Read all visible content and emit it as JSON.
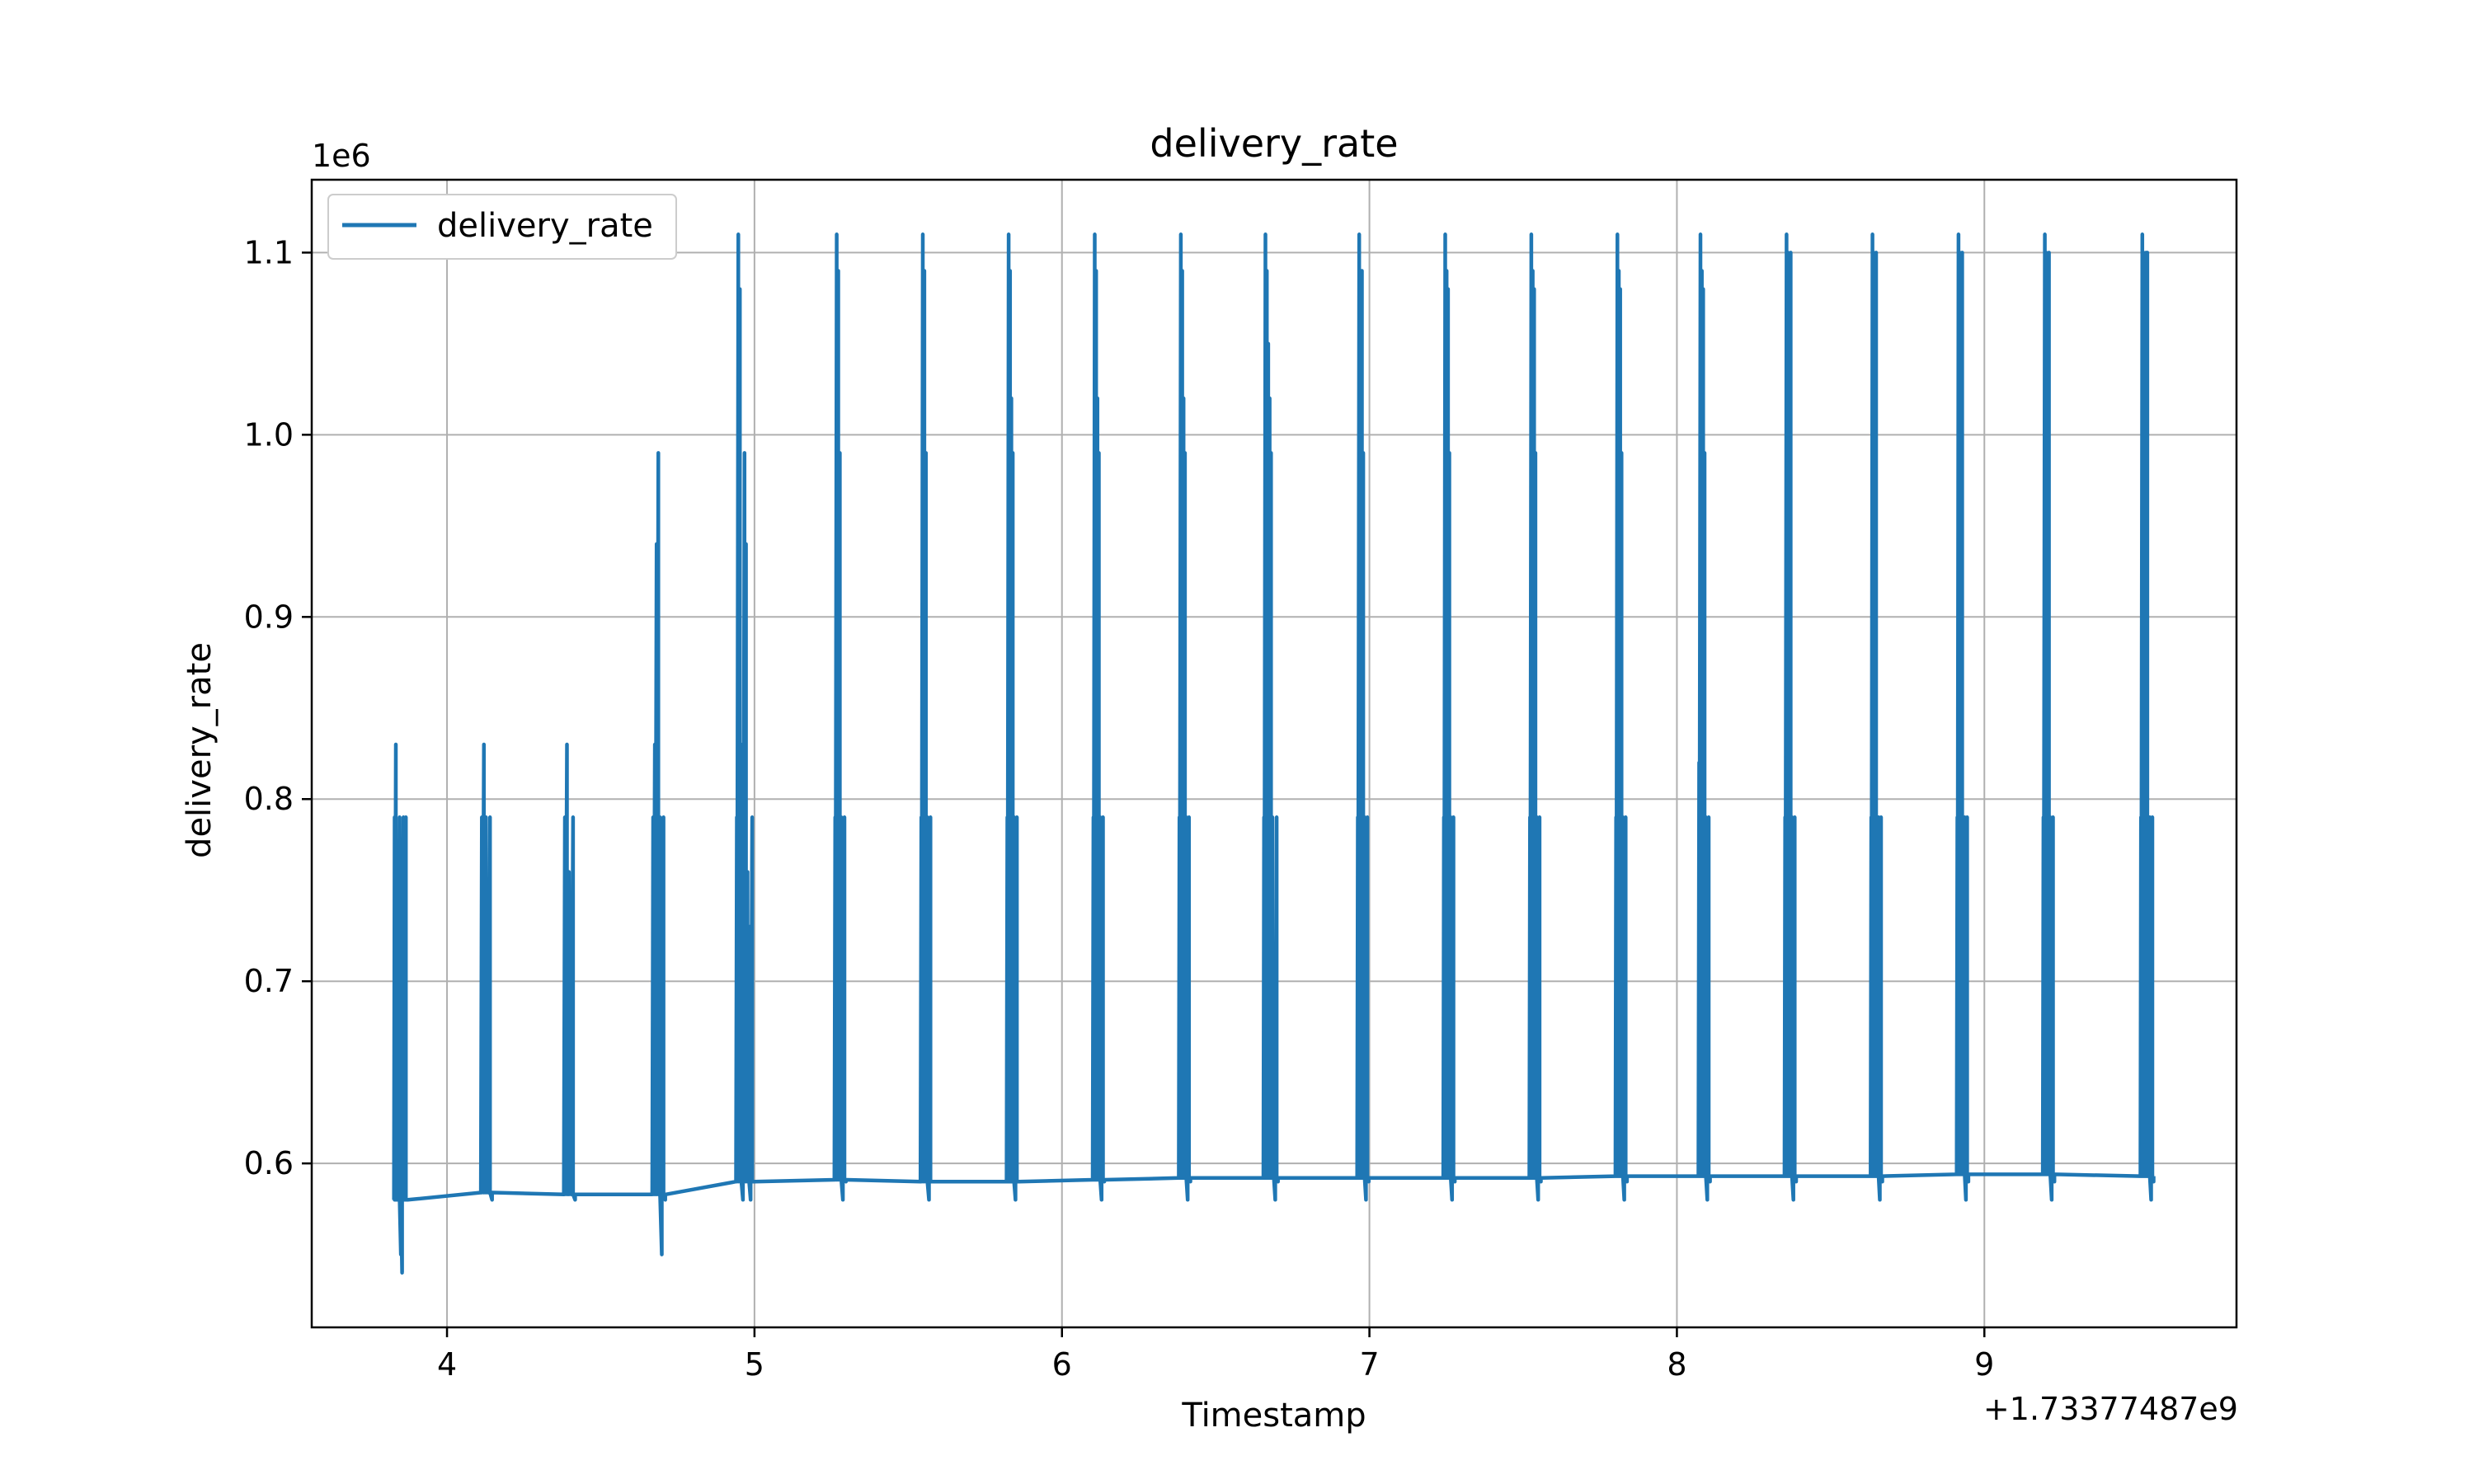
{
  "chart_data": {
    "type": "line",
    "title": "delivery_rate",
    "xlabel": "Timestamp",
    "ylabel": "delivery_rate",
    "x_offset_label": "+1.73377487e9",
    "y_scale_label": "1e6",
    "x_offset": 1733774870,
    "y_scale": 1000000,
    "xlim": [
      3.56,
      9.82
    ],
    "ylim": [
      0.51,
      1.14
    ],
    "x_ticks": [
      4,
      5,
      6,
      7,
      8,
      9
    ],
    "y_ticks": [
      0.6,
      0.7,
      0.8,
      0.9,
      1.0,
      1.1
    ],
    "x_tick_labels": [
      "4",
      "5",
      "6",
      "7",
      "8",
      "9"
    ],
    "y_tick_labels": [
      "0.6",
      "0.7",
      "0.8",
      "0.9",
      "1.0",
      "1.1"
    ],
    "grid": true,
    "legend_position": "top-left",
    "series": [
      {
        "name": "delivery_rate",
        "color": "#1f77b4",
        "bursts": [
          {
            "x": 3.85,
            "width": 0.045,
            "base": 0.58,
            "peaks": [
              0.79,
              0.83,
              0.76,
              0.7,
              0.79,
              0.55,
              0.54,
              0.79,
              0.63,
              0.79,
              0.58
            ]
          },
          {
            "x": 4.13,
            "width": 0.04,
            "base": 0.584,
            "peaks": [
              0.79,
              0.83,
              0.79,
              0.67,
              0.79,
              0.58
            ]
          },
          {
            "x": 4.4,
            "width": 0.04,
            "base": 0.583,
            "peaks": [
              0.79,
              0.83,
              0.76,
              0.67,
              0.79,
              0.58
            ]
          },
          {
            "x": 4.69,
            "width": 0.045,
            "base": 0.583,
            "peaks": [
              0.79,
              0.83,
              0.94,
              0.99,
              0.79,
              0.55,
              0.79,
              0.58
            ]
          },
          {
            "x": 4.97,
            "width": 0.06,
            "base": 0.59,
            "peaks": [
              0.79,
              1.11,
              1.08,
              0.83,
              0.58,
              0.99,
              0.94,
              0.76,
              0.73,
              0.58,
              0.79,
              0.59
            ]
          },
          {
            "x": 5.28,
            "width": 0.04,
            "base": 0.591,
            "peaks": [
              0.79,
              1.11,
              1.09,
              0.99,
              0.79,
              0.58,
              0.79,
              0.59
            ]
          },
          {
            "x": 5.56,
            "width": 0.04,
            "base": 0.59,
            "peaks": [
              0.79,
              1.11,
              1.09,
              0.99,
              0.79,
              0.58,
              0.79,
              0.59
            ]
          },
          {
            "x": 5.84,
            "width": 0.04,
            "base": 0.59,
            "peaks": [
              0.79,
              1.11,
              1.09,
              1.02,
              0.99,
              0.79,
              0.58,
              0.79,
              0.59
            ]
          },
          {
            "x": 6.12,
            "width": 0.04,
            "base": 0.591,
            "peaks": [
              0.79,
              1.11,
              1.09,
              1.02,
              0.99,
              0.79,
              0.58,
              0.79,
              0.59
            ]
          },
          {
            "x": 6.4,
            "width": 0.04,
            "base": 0.592,
            "peaks": [
              0.79,
              1.11,
              1.09,
              1.02,
              0.99,
              0.79,
              0.58,
              0.79,
              0.59
            ]
          },
          {
            "x": 6.68,
            "width": 0.05,
            "base": 0.592,
            "peaks": [
              0.79,
              1.11,
              1.09,
              1.05,
              1.02,
              0.99,
              0.79,
              0.65,
              0.58,
              0.79,
              0.59
            ]
          },
          {
            "x": 6.98,
            "width": 0.04,
            "base": 0.592,
            "peaks": [
              0.79,
              1.11,
              1.08,
              1.09,
              0.99,
              0.79,
              0.58,
              0.79,
              0.59
            ]
          },
          {
            "x": 7.26,
            "width": 0.04,
            "base": 0.592,
            "peaks": [
              0.79,
              1.11,
              1.09,
              1.08,
              0.99,
              0.79,
              0.58,
              0.79,
              0.59
            ]
          },
          {
            "x": 7.54,
            "width": 0.04,
            "base": 0.592,
            "peaks": [
              0.79,
              1.11,
              1.09,
              1.08,
              0.99,
              0.79,
              0.58,
              0.79,
              0.59
            ]
          },
          {
            "x": 7.82,
            "width": 0.04,
            "base": 0.593,
            "peaks": [
              0.79,
              1.11,
              1.09,
              1.08,
              0.99,
              0.79,
              0.58,
              0.79,
              0.59
            ]
          },
          {
            "x": 8.09,
            "width": 0.04,
            "base": 0.593,
            "peaks": [
              0.82,
              1.11,
              1.09,
              1.08,
              0.99,
              0.79,
              0.58,
              0.79,
              0.59
            ]
          },
          {
            "x": 8.37,
            "width": 0.04,
            "base": 0.593,
            "peaks": [
              0.79,
              1.11,
              1.1,
              1.09,
              1.1,
              0.79,
              0.58,
              0.79,
              0.59
            ]
          },
          {
            "x": 8.65,
            "width": 0.04,
            "base": 0.593,
            "peaks": [
              0.79,
              1.11,
              1.1,
              1.09,
              1.1,
              0.67,
              0.79,
              0.58,
              0.79,
              0.59
            ]
          },
          {
            "x": 8.93,
            "width": 0.04,
            "base": 0.594,
            "peaks": [
              0.79,
              1.11,
              1.1,
              1.09,
              1.1,
              0.67,
              0.79,
              0.58,
              0.79,
              0.59
            ]
          },
          {
            "x": 9.21,
            "width": 0.04,
            "base": 0.594,
            "peaks": [
              0.79,
              1.11,
              1.1,
              1.09,
              1.1,
              0.79,
              0.58,
              0.79,
              0.59
            ]
          },
          {
            "x": 9.53,
            "width": 0.045,
            "base": 0.593,
            "peaks": [
              0.79,
              1.11,
              1.1,
              1.09,
              1.1,
              1.1,
              0.7,
              0.79,
              0.58,
              0.79,
              0.59
            ]
          }
        ]
      }
    ]
  }
}
